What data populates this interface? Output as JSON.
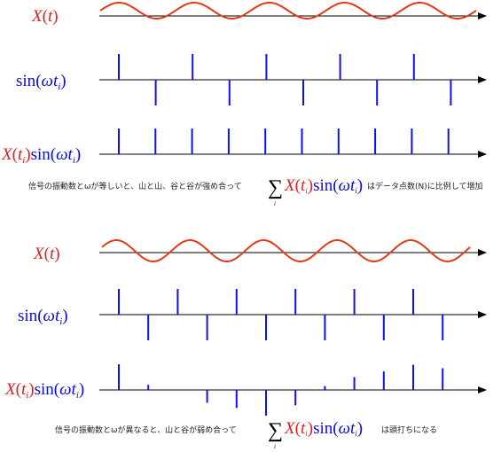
{
  "colors": {
    "wave": "#e23a16",
    "pulse": "#1010ee",
    "axis": "#000000",
    "red_text": "#e02020",
    "blue_text": "#0a0ae0"
  },
  "labels": {
    "X": "X",
    "t": "t",
    "ti": "t",
    "i": "i",
    "sin": "sin",
    "omega": "ω",
    "open": "(",
    "close": ")",
    "sigma": "∑"
  },
  "panel_top": {
    "caption_before": "信号の振動数とωが等しいと、山と山、谷と谷が強め合って",
    "caption_after": "はデータ点数(N)に比例して増加",
    "wave_cycles": 5,
    "sampling_pulses": [
      1,
      -1,
      1,
      -1,
      1,
      -1,
      1,
      -1,
      1,
      -1
    ],
    "product_pulses": [
      1,
      1,
      1,
      1,
      1,
      1,
      1,
      1,
      1,
      1
    ]
  },
  "panel_bottom": {
    "caption_before": "信号の振動数とωが異なると、山と谷が弱め合って",
    "caption_after": "は頭打ちになる",
    "wave_cycles": 5,
    "sampling_pulses": [
      1,
      -1,
      1,
      -1,
      1,
      -1,
      1,
      -1,
      1,
      -1,
      1,
      -1
    ],
    "product_pulses": [
      1,
      0.2,
      0,
      -0.5,
      -0.7,
      -1,
      -0.6,
      0.15,
      0.5,
      0.72,
      0.98,
      0.85
    ]
  }
}
